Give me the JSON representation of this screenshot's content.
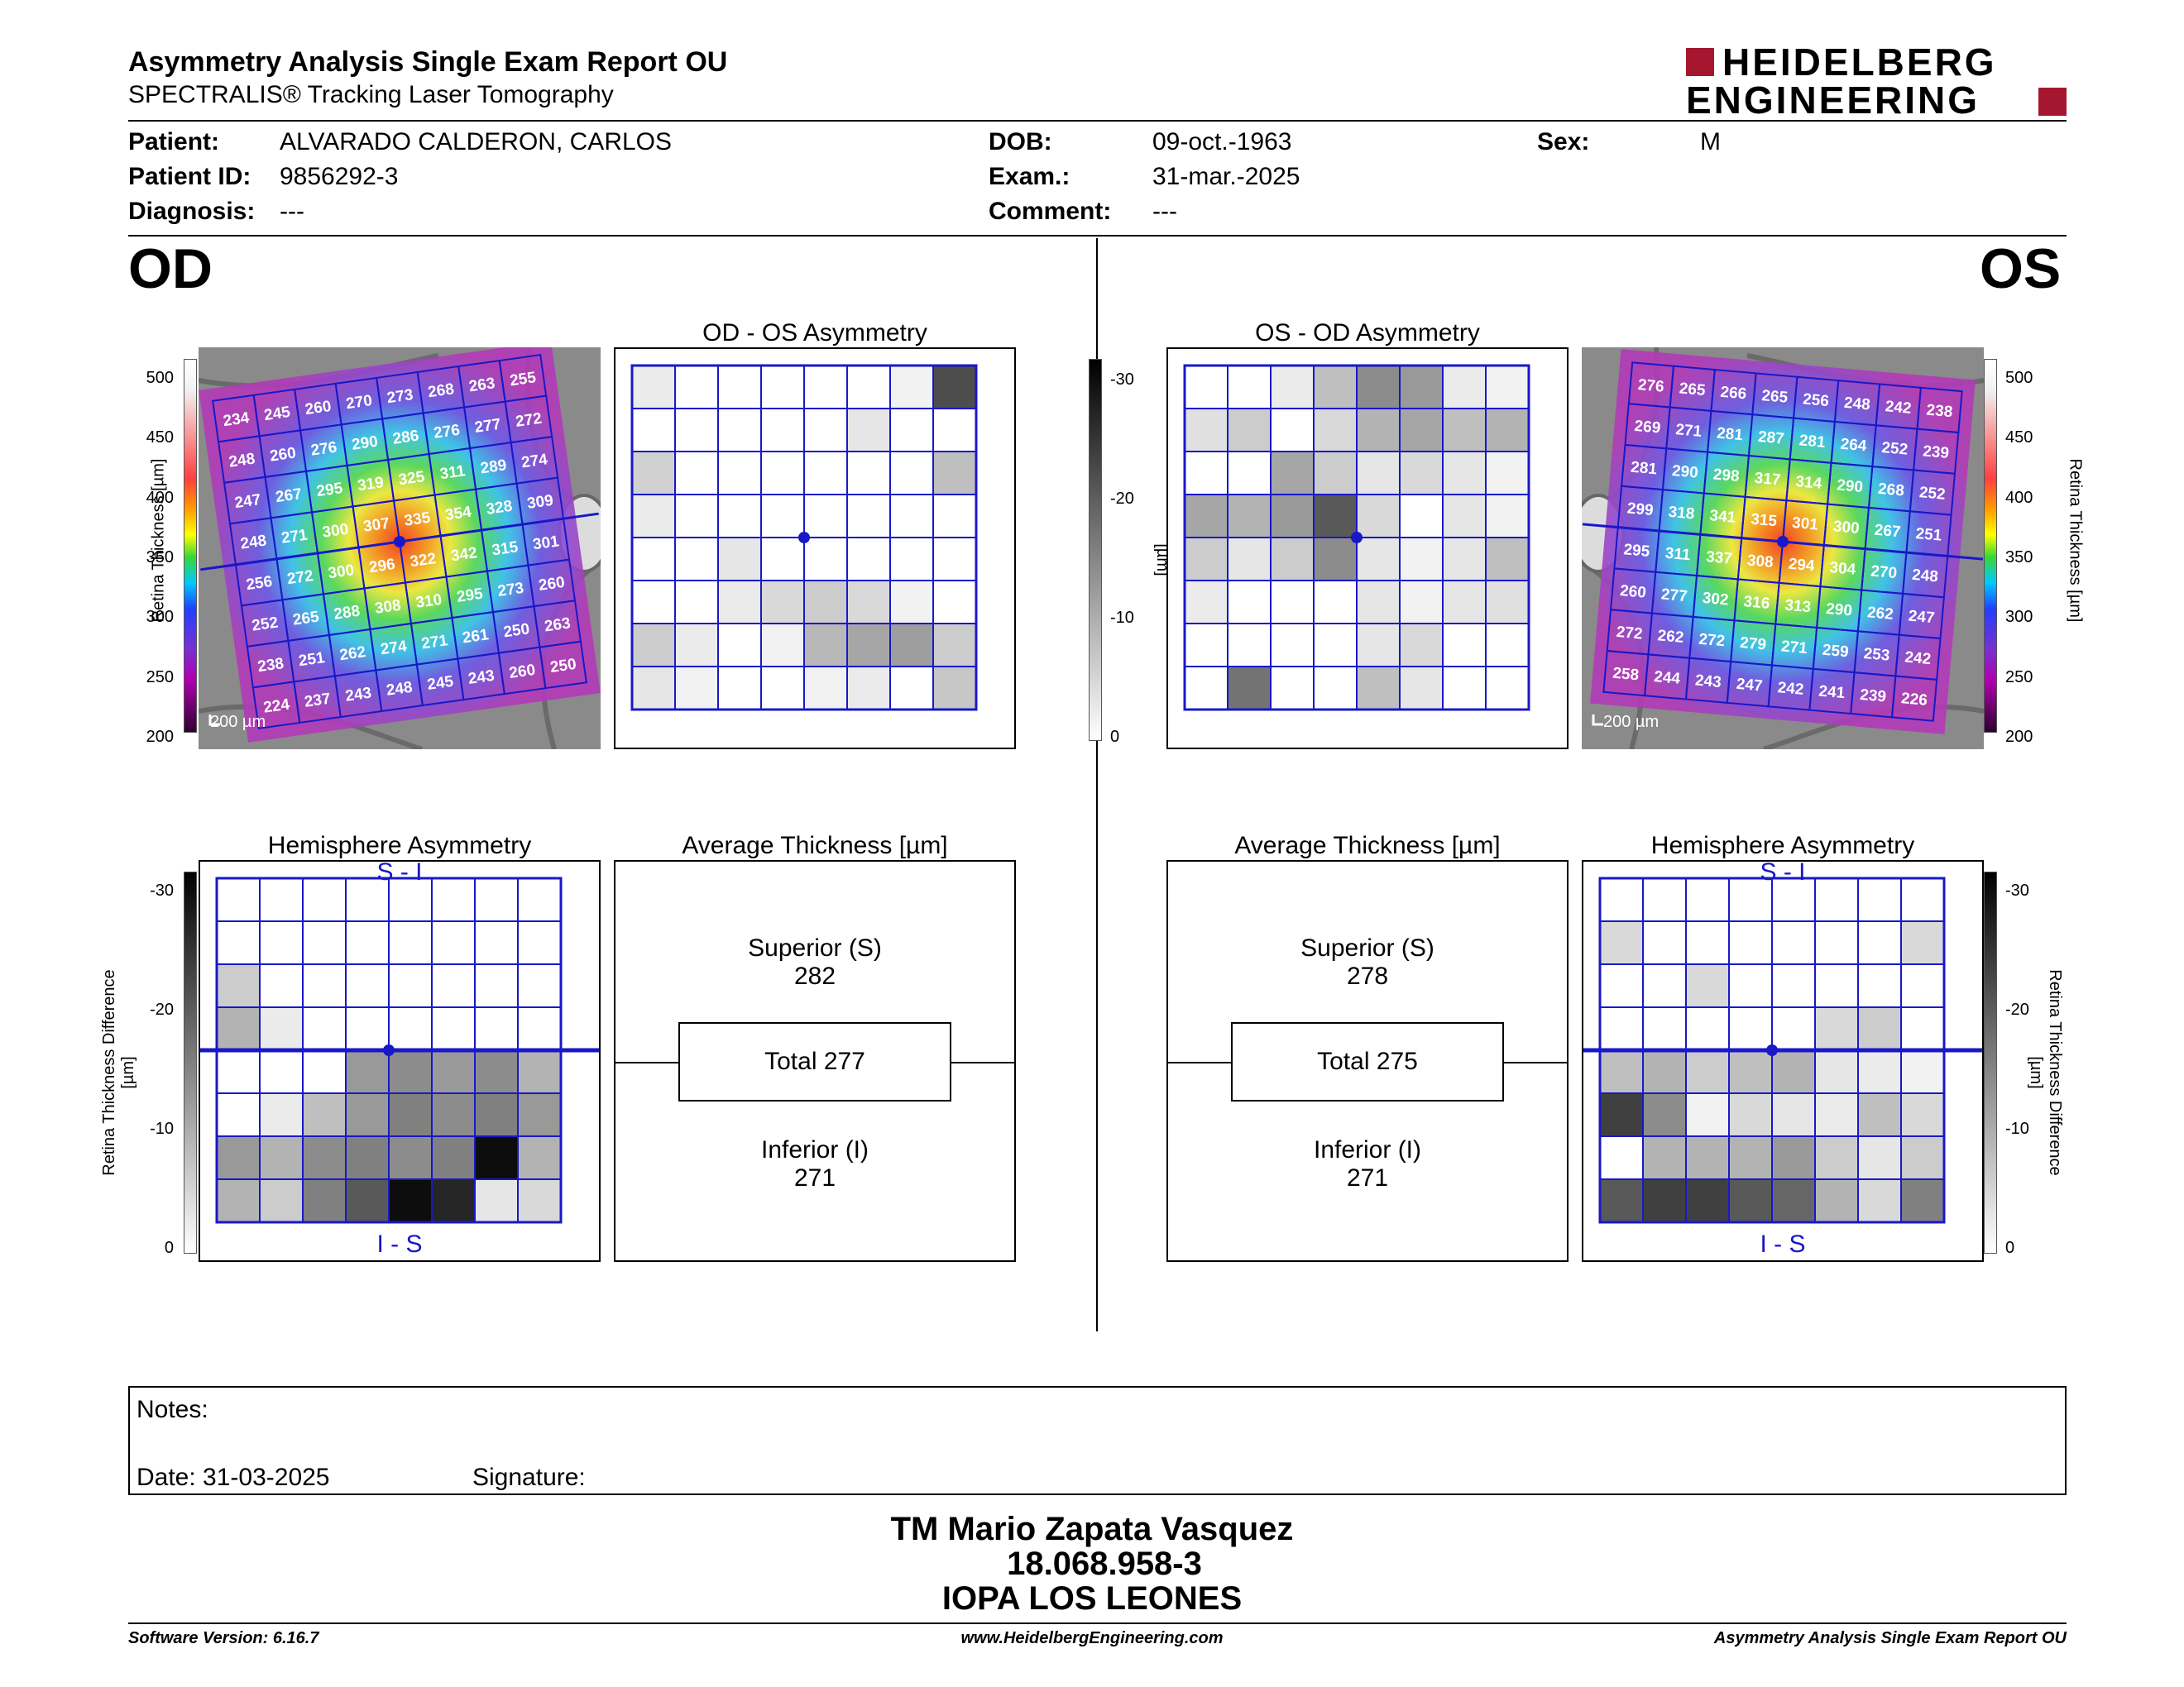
{
  "header": {
    "title": "Asymmetry Analysis Single Exam Report OU",
    "subtitle": "SPECTRALIS® Tracking Laser Tomography",
    "logo_line1": "HEIDELBERG",
    "logo_line2": "ENGINEERING"
  },
  "patient": {
    "patient_label": "Patient:",
    "patient_value": "ALVARADO CALDERON, CARLOS",
    "id_label": "Patient ID:",
    "id_value": "9856292-3",
    "diagnosis_label": "Diagnosis:",
    "diagnosis_value": "---",
    "dob_label": "DOB:",
    "dob_value": "09-oct.-1963",
    "exam_label": "Exam.:",
    "exam_value": "31-mar.-2025",
    "comment_label": "Comment:",
    "comment_value": "---",
    "sex_label": "Sex:",
    "sex_value": "M"
  },
  "od": {
    "eye": "OD",
    "asym_title": "OD - OS Asymmetry",
    "hemi_title": "Hemisphere Asymmetry",
    "avg_title": "Average Thickness [µm]",
    "scale": "200 µm",
    "superior_label": "Superior (S)",
    "superior_value": "282",
    "total": "Total 277",
    "inferior_label": "Inferior (I)",
    "inferior_value": "271",
    "hemi_top": "S - I",
    "hemi_bottom": "I - S",
    "thickness": [
      [
        234,
        245,
        260,
        270,
        273,
        268,
        263,
        255
      ],
      [
        248,
        260,
        276,
        290,
        286,
        276,
        277,
        272
      ],
      [
        247,
        267,
        295,
        319,
        325,
        311,
        289,
        274
      ],
      [
        248,
        271,
        300,
        307,
        335,
        354,
        328,
        309
      ],
      [
        256,
        272,
        300,
        296,
        322,
        342,
        315,
        301
      ],
      [
        252,
        265,
        288,
        308,
        310,
        295,
        273,
        260
      ],
      [
        238,
        251,
        262,
        274,
        271,
        261,
        250,
        263
      ],
      [
        224,
        237,
        243,
        248,
        245,
        243,
        260,
        250
      ]
    ],
    "asym_grid": [
      [
        8,
        0,
        0,
        0,
        0,
        0,
        5,
        70
      ],
      [
        0,
        0,
        0,
        0,
        0,
        10,
        0,
        0
      ],
      [
        18,
        0,
        0,
        0,
        0,
        0,
        0,
        25
      ],
      [
        8,
        0,
        0,
        0,
        0,
        0,
        0,
        0
      ],
      [
        0,
        0,
        10,
        0,
        0,
        0,
        0,
        0
      ],
      [
        0,
        0,
        8,
        15,
        20,
        15,
        5,
        0
      ],
      [
        20,
        8,
        0,
        5,
        28,
        35,
        38,
        20
      ],
      [
        10,
        5,
        0,
        0,
        5,
        8,
        0,
        22
      ]
    ],
    "hemi_grid": [
      [
        0,
        0,
        0,
        0,
        0,
        0,
        0,
        0
      ],
      [
        0,
        0,
        0,
        0,
        0,
        0,
        0,
        0
      ],
      [
        20,
        0,
        0,
        0,
        0,
        0,
        0,
        0
      ],
      [
        30,
        8,
        0,
        0,
        0,
        0,
        0,
        0
      ],
      [
        0,
        0,
        0,
        40,
        45,
        40,
        45,
        30
      ],
      [
        0,
        8,
        25,
        40,
        50,
        45,
        50,
        40
      ],
      [
        40,
        30,
        45,
        50,
        45,
        50,
        95,
        30
      ],
      [
        30,
        20,
        50,
        65,
        95,
        85,
        10,
        15
      ]
    ]
  },
  "os": {
    "eye": "OS",
    "asym_title": "OS - OD Asymmetry",
    "hemi_title": "Hemisphere Asymmetry",
    "avg_title": "Average Thickness [µm]",
    "scale": "200 µm",
    "superior_label": "Superior (S)",
    "superior_value": "278",
    "total": "Total 275",
    "inferior_label": "Inferior (I)",
    "inferior_value": "271",
    "hemi_top": "S - I",
    "hemi_bottom": "I - S",
    "thickness": [
      [
        276,
        265,
        266,
        265,
        256,
        248,
        242,
        238
      ],
      [
        269,
        271,
        281,
        287,
        281,
        264,
        252,
        239
      ],
      [
        281,
        290,
        298,
        317,
        314,
        290,
        268,
        252
      ],
      [
        299,
        318,
        341,
        315,
        301,
        300,
        267,
        251
      ],
      [
        295,
        311,
        337,
        308,
        294,
        304,
        270,
        248
      ],
      [
        260,
        277,
        302,
        316,
        313,
        290,
        262,
        247
      ],
      [
        272,
        262,
        272,
        279,
        271,
        259,
        253,
        242
      ],
      [
        258,
        244,
        243,
        247,
        242,
        241,
        239,
        226
      ]
    ],
    "asym_grid": [
      [
        0,
        0,
        8,
        25,
        45,
        40,
        8,
        5
      ],
      [
        12,
        20,
        0,
        15,
        30,
        35,
        25,
        30
      ],
      [
        0,
        0,
        35,
        20,
        10,
        15,
        10,
        5
      ],
      [
        35,
        30,
        40,
        65,
        15,
        0,
        10,
        5
      ],
      [
        20,
        10,
        20,
        45,
        10,
        5,
        10,
        25
      ],
      [
        8,
        0,
        0,
        0,
        10,
        5,
        10,
        12
      ],
      [
        0,
        0,
        0,
        0,
        10,
        15,
        0,
        0
      ],
      [
        0,
        55,
        0,
        0,
        25,
        10,
        0,
        0
      ]
    ],
    "hemi_grid": [
      [
        0,
        0,
        0,
        0,
        0,
        0,
        0,
        0
      ],
      [
        15,
        0,
        0,
        0,
        0,
        0,
        0,
        15
      ],
      [
        0,
        0,
        15,
        0,
        0,
        0,
        0,
        0
      ],
      [
        0,
        0,
        0,
        0,
        0,
        15,
        20,
        0
      ],
      [
        25,
        30,
        20,
        25,
        30,
        10,
        8,
        5
      ],
      [
        75,
        45,
        5,
        15,
        10,
        8,
        25,
        15
      ],
      [
        0,
        30,
        30,
        30,
        40,
        20,
        10,
        20
      ],
      [
        65,
        75,
        75,
        65,
        60,
        30,
        15,
        50
      ]
    ]
  },
  "colorbar": {
    "thickness_label": "Retina Thickness [µm]",
    "thickness_ticks": [
      "500",
      "450",
      "400",
      "350",
      "300",
      "250",
      "200"
    ],
    "diff_label": "Retina Thickness Difference [µm]",
    "diff_ticks": [
      "-30",
      "-20",
      "-10",
      "0"
    ]
  },
  "notes": {
    "label": "Notes:",
    "date": "Date: 31-03-2025",
    "signature": "Signature:"
  },
  "signer": {
    "name": "TM Mario Zapata Vasquez",
    "rut": "18.068.958-3",
    "org": "IOPA LOS LEONES"
  },
  "footer": {
    "version": "Software Version: 6.16.7",
    "url": "www.HeidelbergEngineering.com",
    "report": "Asymmetry Analysis Single Exam Report OU"
  },
  "colors": {
    "grid_blue": "#1818c8",
    "logo_red": "#a5172f"
  }
}
